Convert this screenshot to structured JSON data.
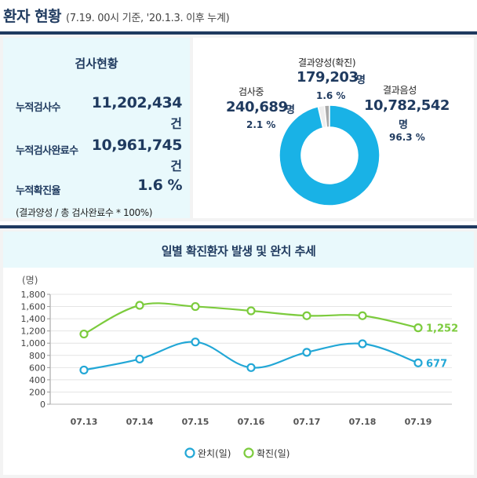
{
  "header": {
    "title": "환자 현황",
    "subtitle": "(7.19. 00시 기준, '20.1.3. 이후 누계)"
  },
  "testing": {
    "title": "검사현황",
    "rows": [
      {
        "label": "누적검사수",
        "value": "11,202,434",
        "unit": "건"
      },
      {
        "label": "누적검사완료수",
        "value": "10,961,745",
        "unit": "건"
      },
      {
        "label": "누적확진율",
        "value": "1.6 %"
      }
    ],
    "note": "(결과양성 / 총 검사완료수 * 100%)"
  },
  "donut": {
    "segments": [
      {
        "label": "검사중",
        "value": "240,689",
        "unit": "명",
        "pct": "2.1 %",
        "share": 2.1,
        "color": "#eeeeee"
      },
      {
        "label": "결과양성(확진)",
        "value": "179,203",
        "unit": "명",
        "pct": "1.6 %",
        "share": 1.6,
        "color": "#aaaaaa"
      },
      {
        "label": "결과음성",
        "value": "10,782,542",
        "unit": "명",
        "pct": "96.3 %",
        "share": 96.3,
        "color": "#19b2e6"
      }
    ]
  },
  "chart": {
    "title": "일별 확진환자 발생 및 완치 추세"
  },
  "chart_data": {
    "type": "line",
    "ylabel": "(명)",
    "ylim": [
      0,
      1800
    ],
    "yticks": [
      "0",
      "200",
      "400",
      "600",
      "800",
      "1,000",
      "1,200",
      "1,400",
      "1,600",
      "1,800"
    ],
    "categories": [
      "07.13",
      "07.14",
      "07.15",
      "07.16",
      "07.17",
      "07.18",
      "07.19"
    ],
    "series": [
      {
        "name": "완치(일)",
        "color": "#22a7d6",
        "values": [
          560,
          740,
          1020,
          600,
          850,
          990,
          677
        ],
        "end_label": "677"
      },
      {
        "name": "확진(일)",
        "color": "#7ccb3d",
        "values": [
          1150,
          1620,
          1600,
          1530,
          1450,
          1450,
          1252
        ],
        "end_label": "1,252"
      }
    ],
    "grid": true,
    "legend": "bottom"
  }
}
